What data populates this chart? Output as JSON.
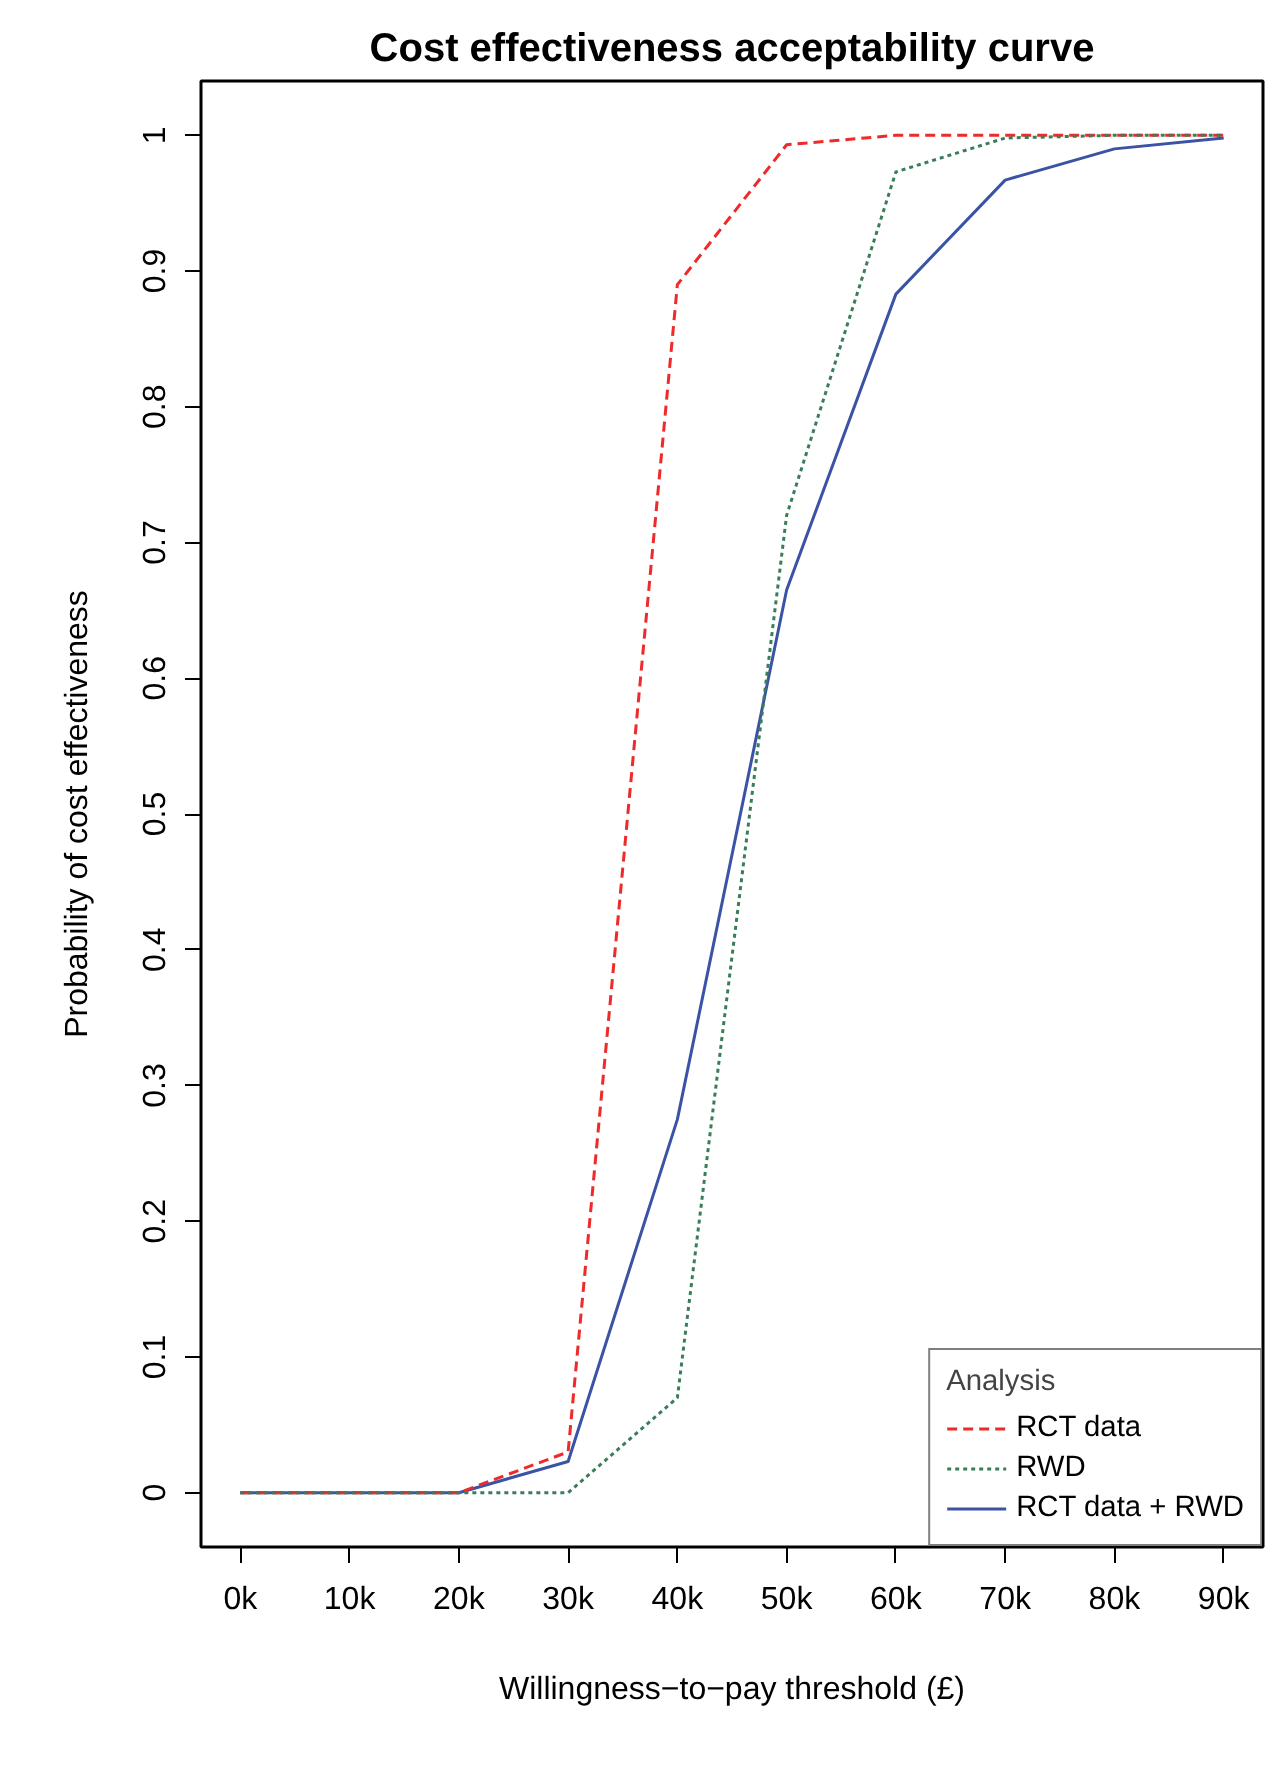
{
  "chart_data": {
    "type": "line",
    "title": "Cost effectiveness acceptability curve",
    "xlabel": "Willingness−to−pay threshold (£)",
    "ylabel": "Probability of cost effectiveness",
    "legend_title": "Analysis",
    "x": [
      0,
      10000,
      20000,
      30000,
      40000,
      50000,
      60000,
      70000,
      80000,
      90000
    ],
    "series": [
      {
        "name": "RCT data",
        "color": "#ee2a2a",
        "line_style": "dashed",
        "values": [
          0,
          0,
          0,
          0.03,
          0.89,
          0.993,
          1,
          1,
          1,
          1
        ]
      },
      {
        "name": "RWD",
        "color": "#3a7d5a",
        "line_style": "dotted",
        "values": [
          0,
          0,
          0,
          0,
          0.07,
          0.72,
          0.973,
          0.998,
          1,
          1
        ]
      },
      {
        "name": "RCT data + RWD",
        "color": "#3b53a4",
        "line_style": "solid",
        "values": [
          0,
          0,
          0,
          0.023,
          0.275,
          0.665,
          0.883,
          0.967,
          0.99,
          0.998
        ]
      }
    ],
    "xlim": [
      -3600,
      93600
    ],
    "ylim": [
      -0.04,
      1.04
    ],
    "xticks": [
      {
        "value": 0,
        "label": "0k"
      },
      {
        "value": 10000,
        "label": "10k"
      },
      {
        "value": 20000,
        "label": "20k"
      },
      {
        "value": 30000,
        "label": "30k"
      },
      {
        "value": 40000,
        "label": "40k"
      },
      {
        "value": 50000,
        "label": "50k"
      },
      {
        "value": 60000,
        "label": "60k"
      },
      {
        "value": 70000,
        "label": "70k"
      },
      {
        "value": 80000,
        "label": "80k"
      },
      {
        "value": 90000,
        "label": "90k"
      }
    ],
    "yticks": [
      0,
      0.1,
      0.2,
      0.3,
      0.4,
      0.5,
      0.6,
      0.7,
      0.8,
      0.9,
      1
    ],
    "legend": "bottom right",
    "grid": false
  }
}
